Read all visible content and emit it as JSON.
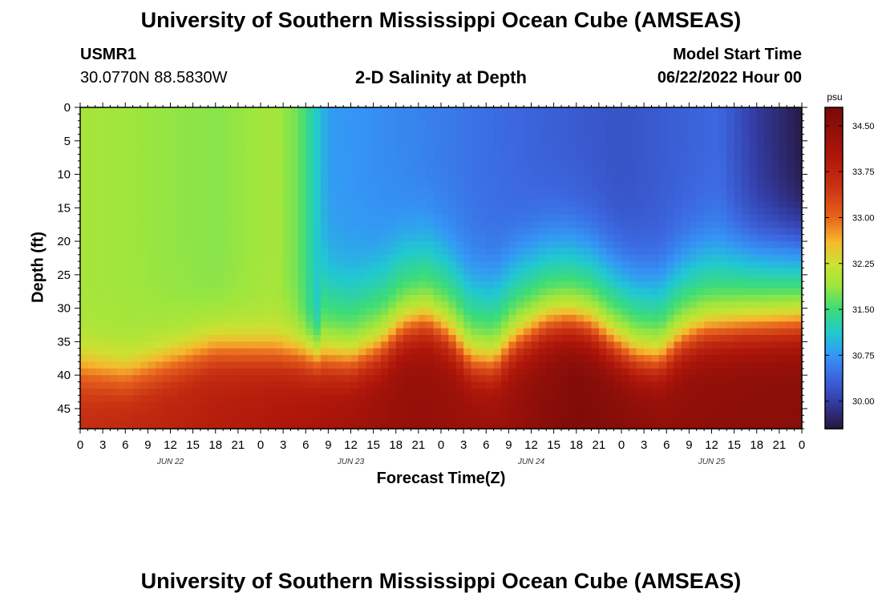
{
  "header": {
    "title": "University of Southern Mississippi Ocean Cube (AMSEAS)",
    "station": "USMR1",
    "coords": "30.0770N  88.5830W",
    "plot_title": "2-D Salinity at Depth",
    "start_label": "Model Start Time",
    "start_value": "06/22/2022 Hour 00",
    "footer_title": "University of Southern Mississippi Ocean Cube (AMSEAS)"
  },
  "chart_data": {
    "type": "heatmap",
    "title": "2-D Salinity at Depth",
    "xlabel": "Forecast Time(Z)",
    "ylabel": "Depth (ft)",
    "x_ticks": [
      "0",
      "3",
      "6",
      "9",
      "12",
      "15",
      "18",
      "21",
      "0",
      "3",
      "6",
      "9",
      "12",
      "15",
      "18",
      "21",
      "0",
      "3",
      "6",
      "9",
      "12",
      "15",
      "18",
      "21",
      "0",
      "3",
      "6",
      "9",
      "12",
      "15",
      "18",
      "21",
      "0"
    ],
    "date_labels": [
      {
        "label": "JUN 22",
        "hour": 12
      },
      {
        "label": "JUN 23",
        "hour": 36
      },
      {
        "label": "JUN 24",
        "hour": 60
      },
      {
        "label": "JUN 25",
        "hour": 84
      }
    ],
    "xlim": [
      0,
      96
    ],
    "y_ticks": [
      0,
      5,
      10,
      15,
      20,
      25,
      30,
      35,
      40,
      45
    ],
    "ylim": [
      0,
      48
    ],
    "colorbar": {
      "unit": "psu",
      "ticks": [
        "34.50",
        "33.75",
        "33.00",
        "32.25",
        "31.50",
        "30.75",
        "30.00"
      ],
      "range": [
        29.55,
        34.8
      ]
    },
    "halocline_depth_ft": [
      {
        "hour": 0,
        "depth": 36
      },
      {
        "hour": 6,
        "depth": 37
      },
      {
        "hour": 12,
        "depth": 35
      },
      {
        "hour": 18,
        "depth": 33
      },
      {
        "hour": 24,
        "depth": 33.5
      },
      {
        "hour": 30,
        "depth": 34
      },
      {
        "hour": 36,
        "depth": 35
      },
      {
        "hour": 40,
        "depth": 33
      },
      {
        "hour": 43,
        "depth": 30
      },
      {
        "hour": 46,
        "depth": 29
      },
      {
        "hour": 49,
        "depth": 31
      },
      {
        "hour": 52,
        "depth": 35
      },
      {
        "hour": 55,
        "depth": 35.5
      },
      {
        "hour": 58,
        "depth": 32
      },
      {
        "hour": 62,
        "depth": 29.5
      },
      {
        "hour": 65,
        "depth": 29
      },
      {
        "hour": 68,
        "depth": 30
      },
      {
        "hour": 71,
        "depth": 32.5
      },
      {
        "hour": 74,
        "depth": 34.5
      },
      {
        "hour": 77,
        "depth": 35
      },
      {
        "hour": 80,
        "depth": 32
      },
      {
        "hour": 83,
        "depth": 30.5
      },
      {
        "hour": 88,
        "depth": 30
      },
      {
        "hour": 96,
        "depth": 29.5
      }
    ],
    "surface_salinity_psu": [
      {
        "hour": 0,
        "value": 31.95
      },
      {
        "hour": 18,
        "value": 31.8
      },
      {
        "hour": 26,
        "value": 31.95
      },
      {
        "hour": 29,
        "value": 31.7
      },
      {
        "hour": 33,
        "value": 30.8
      },
      {
        "hour": 48,
        "value": 30.55
      },
      {
        "hour": 60,
        "value": 30.35
      },
      {
        "hour": 72,
        "value": 30.2
      },
      {
        "hour": 85,
        "value": 30.4
      },
      {
        "hour": 90,
        "value": 29.95
      },
      {
        "hour": 96,
        "value": 29.6
      }
    ],
    "bottom_salinity_psu": [
      {
        "hour": 0,
        "value": 33.6
      },
      {
        "hour": 30,
        "value": 34.05
      },
      {
        "hour": 44,
        "value": 34.4
      },
      {
        "hour": 56,
        "value": 34.3
      },
      {
        "hour": 66,
        "value": 34.7
      },
      {
        "hour": 78,
        "value": 34.45
      },
      {
        "hour": 96,
        "value": 34.55
      }
    ]
  }
}
